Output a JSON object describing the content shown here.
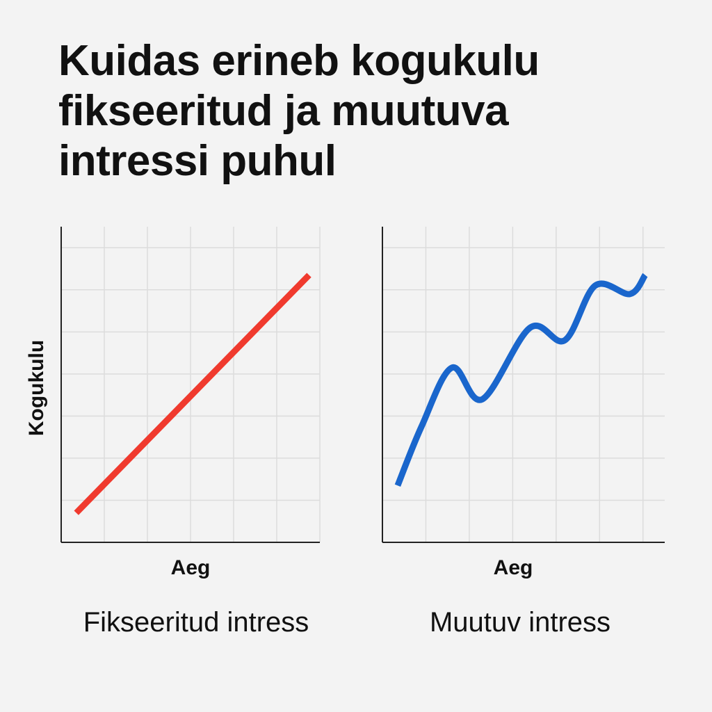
{
  "title_lines": [
    "Kuidas erineb kogukulu",
    "fikseeritud ja muutuva",
    "intressi puhul"
  ],
  "chart_data": [
    {
      "type": "line",
      "title": "Fikseeritud intress",
      "xlabel": "Aeg",
      "ylabel": "Kogukulu",
      "xlim": [
        0,
        6
      ],
      "ylim": [
        0,
        7.5
      ],
      "grid": true,
      "series": [
        {
          "color": "#f03a2e",
          "x": [
            0.35,
            5.75
          ],
          "y": [
            0.7,
            6.35
          ]
        }
      ]
    },
    {
      "type": "line",
      "title": "Muutuv intress",
      "xlabel": "Aeg",
      "ylabel": "",
      "xlim": [
        0,
        6.5
      ],
      "ylim": [
        0,
        7.5
      ],
      "grid": true,
      "series": [
        {
          "color": "#1a66cc",
          "x": [
            0.35,
            0.9,
            1.6,
            2.3,
            3.4,
            4.2,
            4.9,
            5.7,
            6.05
          ],
          "y": [
            1.35,
            2.75,
            4.15,
            3.4,
            5.1,
            4.8,
            6.1,
            5.9,
            6.35
          ]
        }
      ]
    }
  ]
}
